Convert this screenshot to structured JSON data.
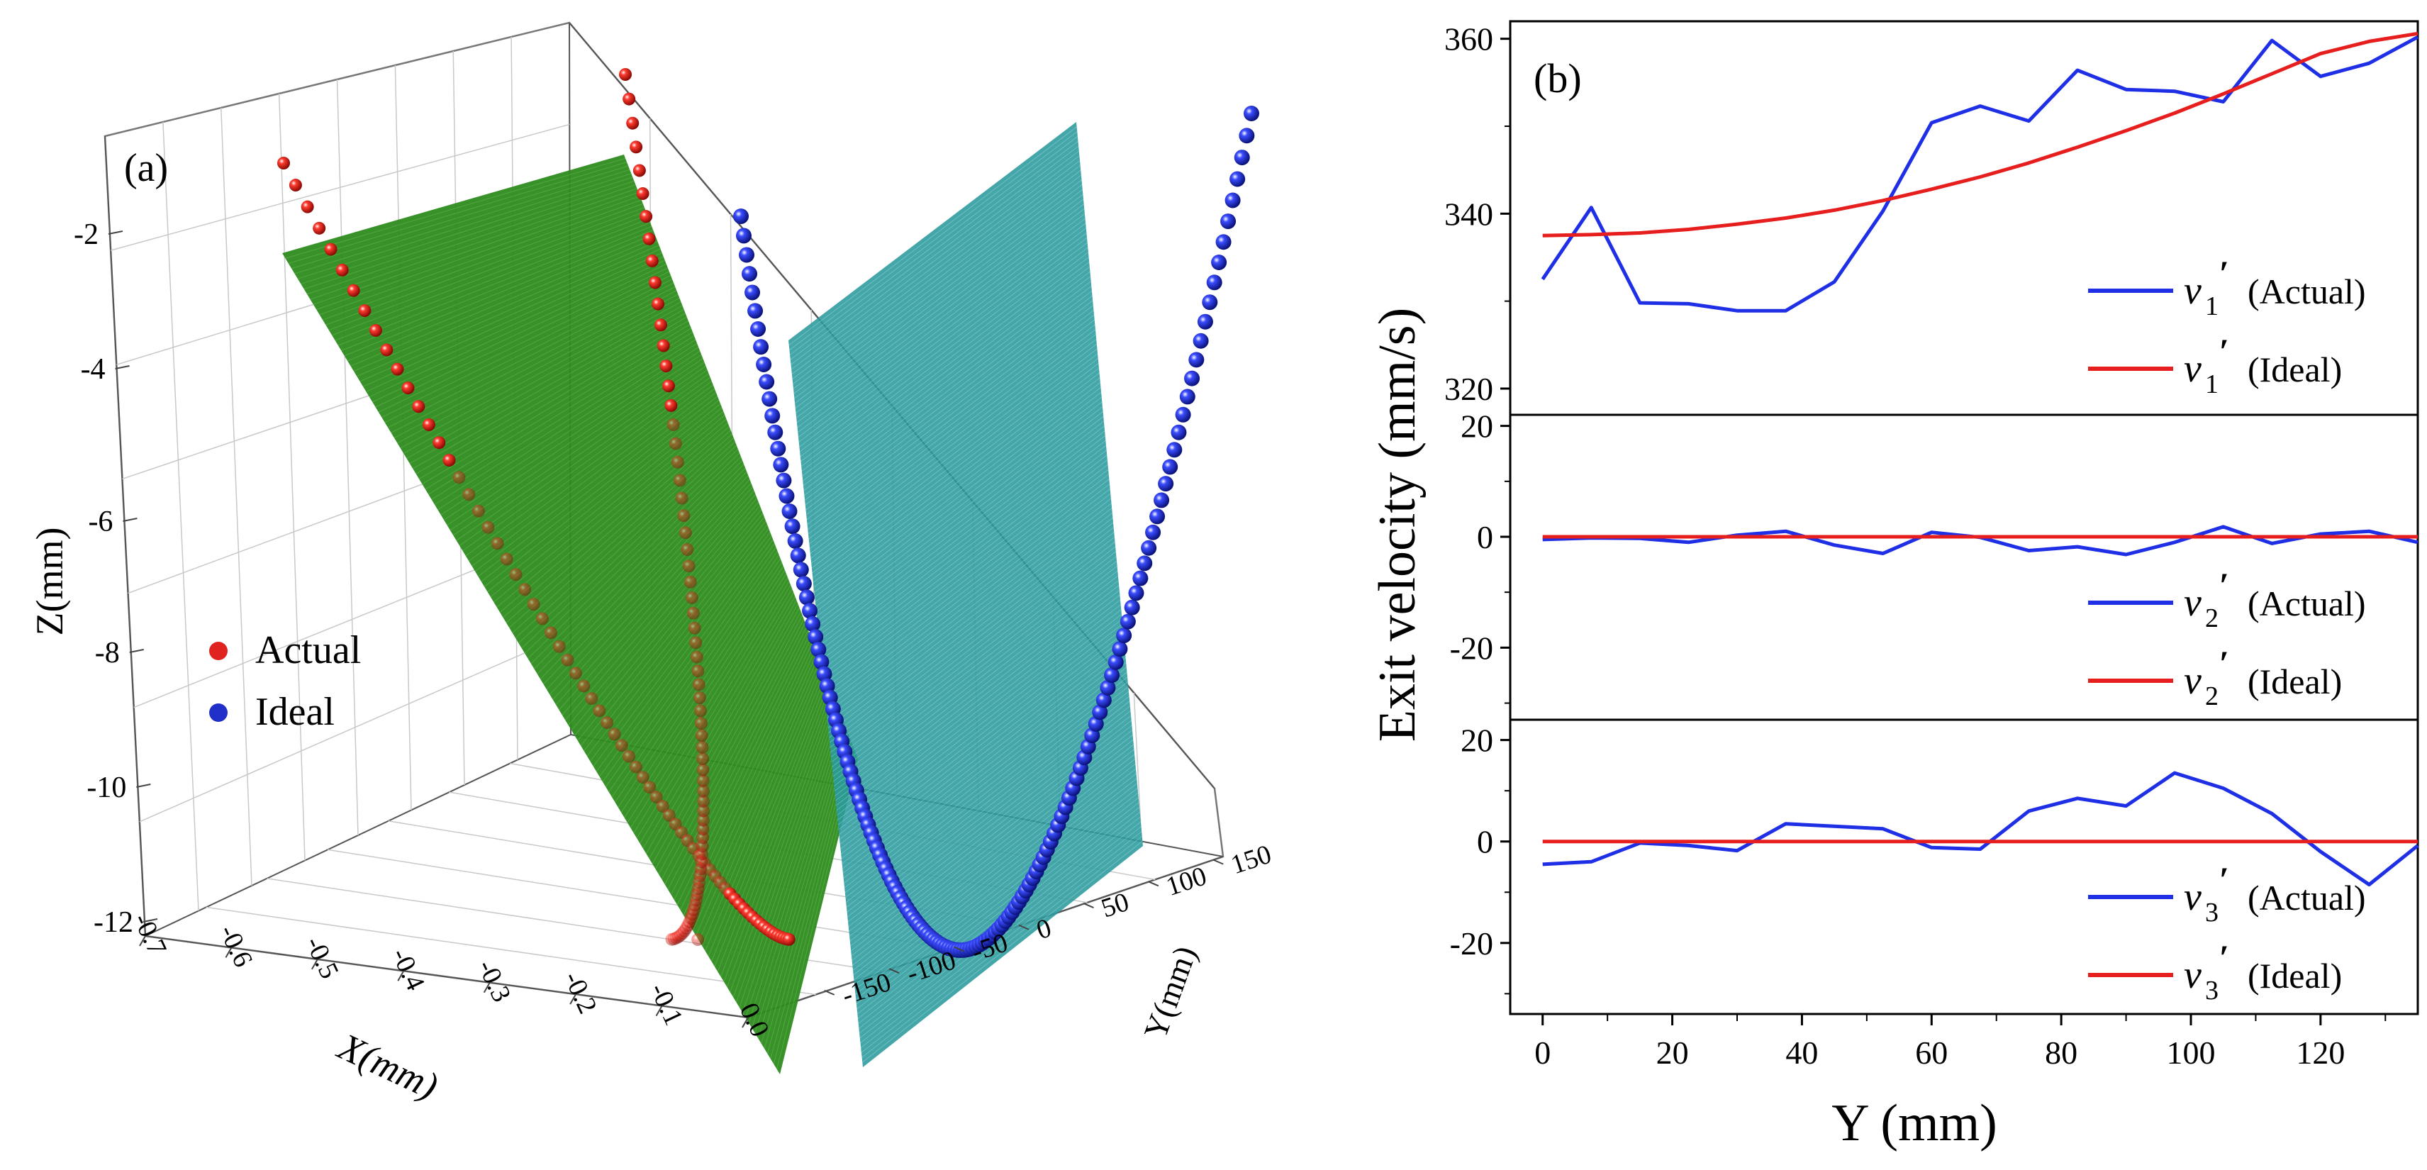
{
  "chart_data": [
    {
      "type": "scatter3d",
      "panel_label": "(a)",
      "xlabel": "X(mm)",
      "ylabel": "Y(mm)",
      "zlabel": "Z(mm)",
      "x_ticks": [
        "-0.7",
        "-0.6",
        "-0.5",
        "-0.4",
        "-0.3",
        "-0.2",
        "-0.1",
        "0.0"
      ],
      "y_ticks": [
        "150",
        "100",
        "50",
        "0",
        "-50",
        "-100",
        "-150"
      ],
      "z_ticks": [
        "-2",
        "-4",
        "-6",
        "-8",
        "-10",
        "-12"
      ],
      "xlim": [
        -0.75,
        0.0
      ],
      "ylim": [
        -160,
        160
      ],
      "zlim": [
        -12.3,
        0.2
      ],
      "legend": [
        {
          "name": "Actual",
          "color": "#e0231e"
        },
        {
          "name": "Ideal",
          "color": "#1f2fc8"
        }
      ],
      "series": [
        {
          "name": "Actual",
          "color": "#e0231e",
          "description_points": [
            {
              "x": -0.68,
              "y": -145,
              "z": -0.8
            },
            {
              "x": -0.42,
              "y": -100,
              "z": -5.5
            },
            {
              "x": -0.22,
              "y": -40,
              "z": -10.6
            },
            {
              "x": -0.18,
              "y": 0,
              "z": -11.3
            },
            {
              "x": -0.22,
              "y": 40,
              "z": -10.6
            },
            {
              "x": -0.42,
              "y": 100,
              "z": -5.5
            },
            {
              "x": -0.68,
              "y": 145,
              "z": -0.8
            }
          ]
        },
        {
          "name": "Ideal",
          "color": "#1f2fc8",
          "description_points": [
            {
              "x": 0.0,
              "y": -150,
              "z": -1.2
            },
            {
              "x": 0.0,
              "y": -100,
              "z": -6.6
            },
            {
              "x": 0.0,
              "y": -50,
              "z": -10.4
            },
            {
              "x": 0.0,
              "y": 0,
              "z": -11.9
            },
            {
              "x": 0.0,
              "y": 50,
              "z": -10.4
            },
            {
              "x": 0.0,
              "y": 100,
              "z": -6.6
            },
            {
              "x": 0.0,
              "y": 150,
              "z": -1.2
            }
          ]
        }
      ]
    },
    {
      "type": "line",
      "panel_label": "(b)",
      "xlabel": "Y (mm)",
      "ylabel": "Exit velocity (mm/s)",
      "xlim": [
        -5,
        135
      ],
      "x_ticks": [
        0,
        20,
        40,
        60,
        80,
        100,
        120
      ],
      "x": [
        0,
        7.5,
        15,
        22.5,
        30,
        37.5,
        45,
        52.5,
        60,
        67.5,
        75,
        82.5,
        90,
        97.5,
        105,
        112.5,
        120,
        127.5,
        135
      ],
      "subplots": [
        {
          "ylim": [
            317,
            362
          ],
          "y_ticks": [
            320,
            340,
            360
          ],
          "series": [
            {
              "symbol": "v",
              "sub": "1",
              "tag": "(Actual)",
              "color": "#1f2fe6",
              "values": [
                332.5,
                340.7,
                329.8,
                329.7,
                328.9,
                328.9,
                332.2,
                340.3,
                350.4,
                352.3,
                350.6,
                356.4,
                354.2,
                354.0,
                352.8,
                359.8,
                355.7,
                357.2,
                360.2
              ]
            },
            {
              "symbol": "v",
              "sub": "1",
              "tag": "(Ideal)",
              "color": "#e61e1e",
              "values": [
                337.5,
                337.6,
                337.8,
                338.2,
                338.8,
                339.5,
                340.4,
                341.5,
                342.8,
                344.2,
                345.8,
                347.6,
                349.5,
                351.5,
                353.7,
                356.0,
                358.3,
                359.7,
                360.6
              ]
            }
          ]
        },
        {
          "ylim": [
            -33,
            22
          ],
          "y_ticks": [
            20,
            0,
            -20
          ],
          "series": [
            {
              "symbol": "v",
              "sub": "2",
              "tag": "(Actual)",
              "color": "#1f2fe6",
              "values": [
                -0.5,
                -0.2,
                -0.3,
                -1.0,
                0.3,
                1.0,
                -1.5,
                -3.0,
                0.8,
                -0.1,
                -2.5,
                -1.8,
                -3.2,
                -1.0,
                1.8,
                -1.2,
                0.5,
                1.0,
                -1.0
              ]
            },
            {
              "symbol": "v",
              "sub": "2",
              "tag": "(Ideal)",
              "color": "#e61e1e",
              "values": [
                0,
                0,
                0,
                0,
                0,
                0,
                0,
                0,
                0,
                0,
                0,
                0,
                0,
                0,
                0,
                0,
                0,
                0,
                0
              ]
            }
          ]
        },
        {
          "ylim": [
            -34,
            24
          ],
          "y_ticks": [
            20,
            0,
            -20
          ],
          "series": [
            {
              "symbol": "v",
              "sub": "3",
              "tag": "(Actual)",
              "color": "#1f2fe6",
              "values": [
                -4.5,
                -4.0,
                -0.3,
                -0.8,
                -1.8,
                3.5,
                3.0,
                2.5,
                -1.2,
                -1.5,
                6.0,
                8.5,
                7.0,
                13.5,
                10.5,
                5.5,
                -2.0,
                -8.5,
                -0.8
              ]
            },
            {
              "symbol": "v",
              "sub": "3",
              "tag": "(Ideal)",
              "color": "#e61e1e",
              "values": [
                0,
                0,
                0,
                0,
                0,
                0,
                0,
                0,
                0,
                0,
                0,
                0,
                0,
                0,
                0,
                0,
                0,
                0,
                0
              ]
            }
          ]
        }
      ]
    }
  ]
}
